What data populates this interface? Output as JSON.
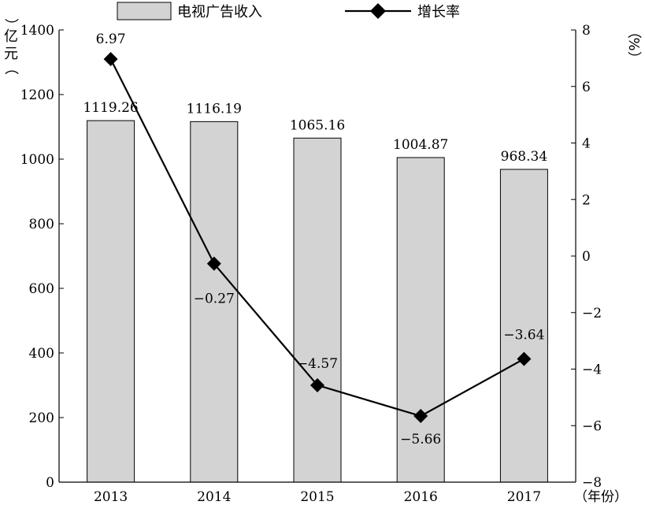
{
  "chart_data": {
    "type": "bar+line",
    "categories": [
      "2013",
      "2014",
      "2015",
      "2016",
      "2017"
    ],
    "series": [
      {
        "name": "电视广告收入",
        "type": "bar",
        "axis": "left",
        "values": [
          1119.26,
          1116.19,
          1065.16,
          1004.87,
          968.34
        ],
        "labels": [
          "1119.26",
          "1116.19",
          "1065.16",
          "1004.87",
          "968.34"
        ]
      },
      {
        "name": "增长率",
        "type": "line",
        "axis": "right",
        "values": [
          6.97,
          -0.27,
          -4.57,
          -5.66,
          -3.64
        ],
        "labels": [
          "6.97",
          "−0.27",
          "−4.57",
          "−5.66",
          "−3.64"
        ]
      }
    ],
    "y_left": {
      "label_chars": [
        "亿",
        "元",
        "（",
        "）"
      ],
      "ylim": [
        0,
        1400
      ],
      "ticks": [
        0,
        200,
        400,
        600,
        800,
        1000,
        1200,
        1400
      ],
      "tick_labels": [
        "0",
        "200",
        "400",
        "600",
        "800",
        "1000",
        "1200",
        "1400"
      ]
    },
    "y_right": {
      "label_chars": [
        "（",
        "%",
        "）"
      ],
      "ylim": [
        -8,
        8
      ],
      "ticks": [
        -8,
        -6,
        -4,
        -2,
        0,
        2,
        4,
        6,
        8
      ],
      "tick_labels": [
        "−8",
        "−6",
        "−4",
        "−2",
        "0",
        "2",
        "4",
        "6",
        "8"
      ]
    },
    "x_axis": {
      "label": "（年份）"
    },
    "legend": {
      "placement": "top-center"
    },
    "colors": {
      "bar_fill": "#d3d3d3",
      "bar_stroke": "#000000",
      "line": "#000000"
    },
    "grid": false
  }
}
